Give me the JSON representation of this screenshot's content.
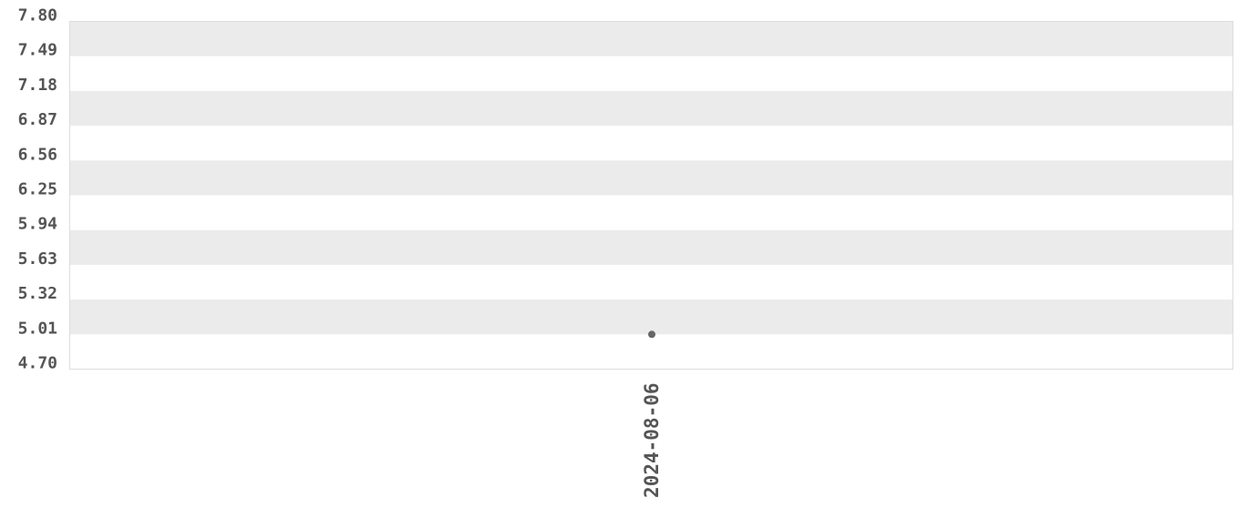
{
  "chart_data": {
    "type": "scatter",
    "title": "",
    "xlabel": "",
    "ylabel": "",
    "x_ticks": [
      "2024-08-06"
    ],
    "y_ticks": [
      "4.70",
      "5.01",
      "5.32",
      "5.63",
      "5.94",
      "6.25",
      "6.56",
      "6.87",
      "7.18",
      "7.49",
      "7.80"
    ],
    "ylim": [
      4.7,
      7.8
    ],
    "grid": "alternating horizontal bands",
    "points": [
      {
        "x": "2024-08-06",
        "y": 5.01
      }
    ],
    "colors": {
      "point": "#666666",
      "band": "#ebebeb",
      "text": "#555555",
      "border": "#dddddd"
    }
  }
}
